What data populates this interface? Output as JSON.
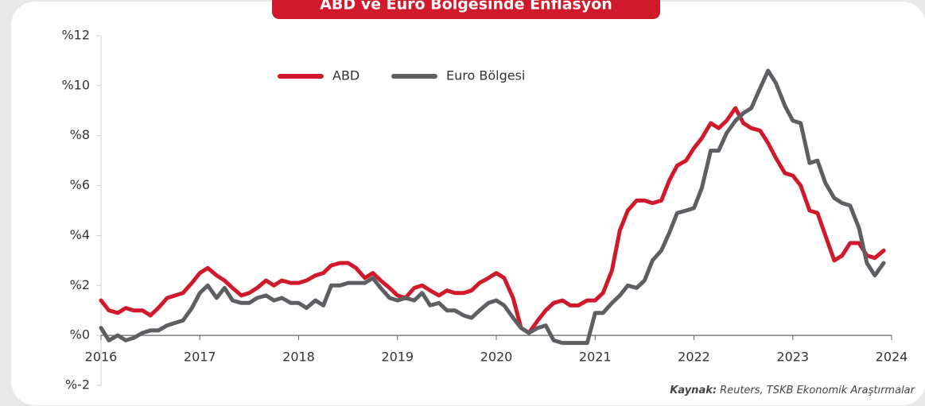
{
  "chart_data": {
    "type": "line",
    "title": "ABD ve Euro Bölgesinde Enflasyon",
    "source_label": "Kaynak:",
    "source_text": "Reuters, TSKB Ekonomik Araştırmalar",
    "xlim": [
      2016,
      2024
    ],
    "xticks": [
      2016,
      2017,
      2018,
      2019,
      2020,
      2021,
      2022,
      2023,
      2024
    ],
    "ylim": [
      -2,
      12
    ],
    "yticks": [
      {
        "value": 12,
        "label": "%12"
      },
      {
        "value": 10,
        "label": "%10"
      },
      {
        "value": 8,
        "label": "%8"
      },
      {
        "value": 6,
        "label": "%6"
      },
      {
        "value": 4,
        "label": "%4"
      },
      {
        "value": 2,
        "label": "%2"
      },
      {
        "value": 0,
        "label": "%0"
      },
      {
        "value": -2,
        "label": "%-2"
      }
    ],
    "legend": "top",
    "x": [
      2016.0,
      2016.08,
      2016.17,
      2016.25,
      2016.33,
      2016.42,
      2016.5,
      2016.58,
      2016.67,
      2016.75,
      2016.83,
      2016.92,
      2017.0,
      2017.08,
      2017.17,
      2017.25,
      2017.33,
      2017.42,
      2017.5,
      2017.58,
      2017.67,
      2017.75,
      2017.83,
      2017.92,
      2018.0,
      2018.08,
      2018.17,
      2018.25,
      2018.33,
      2018.42,
      2018.5,
      2018.58,
      2018.67,
      2018.75,
      2018.83,
      2018.92,
      2019.0,
      2019.08,
      2019.17,
      2019.25,
      2019.33,
      2019.42,
      2019.5,
      2019.58,
      2019.67,
      2019.75,
      2019.83,
      2019.92,
      2020.0,
      2020.08,
      2020.17,
      2020.25,
      2020.33,
      2020.42,
      2020.5,
      2020.58,
      2020.67,
      2020.75,
      2020.83,
      2020.92,
      2021.0,
      2021.08,
      2021.17,
      2021.25,
      2021.33,
      2021.42,
      2021.5,
      2021.58,
      2021.67,
      2021.75,
      2021.83,
      2021.92,
      2022.0,
      2022.08,
      2022.17,
      2022.25,
      2022.33,
      2022.42,
      2022.5,
      2022.58,
      2022.67,
      2022.75,
      2022.83,
      2022.92,
      2023.0,
      2023.08,
      2023.17,
      2023.25,
      2023.33,
      2023.42,
      2023.5,
      2023.58,
      2023.67,
      2023.75,
      2023.83,
      2023.92
    ],
    "series": [
      {
        "name": "ABD",
        "color": "#d0192b",
        "values": [
          1.4,
          1.0,
          0.9,
          1.1,
          1.0,
          1.0,
          0.8,
          1.1,
          1.5,
          1.6,
          1.7,
          2.1,
          2.5,
          2.7,
          2.4,
          2.2,
          1.9,
          1.6,
          1.7,
          1.9,
          2.2,
          2.0,
          2.2,
          2.1,
          2.1,
          2.2,
          2.4,
          2.5,
          2.8,
          2.9,
          2.9,
          2.7,
          2.3,
          2.5,
          2.2,
          1.9,
          1.6,
          1.5,
          1.9,
          2.0,
          1.8,
          1.6,
          1.8,
          1.7,
          1.7,
          1.8,
          2.1,
          2.3,
          2.5,
          2.3,
          1.5,
          0.3,
          0.1,
          0.6,
          1.0,
          1.3,
          1.4,
          1.2,
          1.2,
          1.4,
          1.4,
          1.7,
          2.6,
          4.2,
          5.0,
          5.4,
          5.4,
          5.3,
          5.4,
          6.2,
          6.8,
          7.0,
          7.5,
          7.9,
          8.5,
          8.3,
          8.6,
          9.1,
          8.5,
          8.3,
          8.2,
          7.7,
          7.1,
          6.5,
          6.4,
          6.0,
          5.0,
          4.9,
          4.0,
          3.0,
          3.2,
          3.7,
          3.7,
          3.2,
          3.1,
          3.4
        ]
      },
      {
        "name": "Euro Bölgesi",
        "color": "#5d5f63",
        "values": [
          0.3,
          -0.2,
          0.0,
          -0.2,
          -0.1,
          0.1,
          0.2,
          0.2,
          0.4,
          0.5,
          0.6,
          1.1,
          1.7,
          2.0,
          1.5,
          1.9,
          1.4,
          1.3,
          1.3,
          1.5,
          1.6,
          1.4,
          1.5,
          1.3,
          1.3,
          1.1,
          1.4,
          1.2,
          2.0,
          2.0,
          2.1,
          2.1,
          2.1,
          2.3,
          1.9,
          1.5,
          1.4,
          1.5,
          1.4,
          1.7,
          1.2,
          1.3,
          1.0,
          1.0,
          0.8,
          0.7,
          1.0,
          1.3,
          1.4,
          1.2,
          0.7,
          0.3,
          0.1,
          0.3,
          0.4,
          -0.2,
          -0.3,
          -0.3,
          -0.3,
          -0.3,
          0.9,
          0.9,
          1.3,
          1.6,
          2.0,
          1.9,
          2.2,
          3.0,
          3.4,
          4.1,
          4.9,
          5.0,
          5.1,
          5.9,
          7.4,
          7.4,
          8.1,
          8.6,
          8.9,
          9.1,
          9.9,
          10.6,
          10.1,
          9.2,
          8.6,
          8.5,
          6.9,
          7.0,
          6.1,
          5.5,
          5.3,
          5.2,
          4.3,
          2.9,
          2.4,
          2.9
        ]
      }
    ]
  }
}
